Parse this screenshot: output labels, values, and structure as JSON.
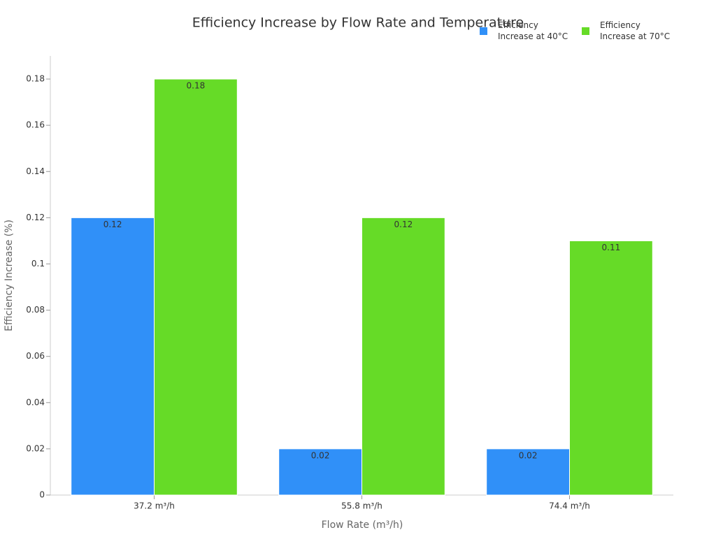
{
  "chart_data": {
    "type": "bar",
    "title": "Efficiency Increase by Flow Rate and Temperature",
    "x_label": "Flow Rate (m³/h)",
    "y_label": "Efficiency Increase (%)",
    "categories": [
      "37.2 m³/h",
      "55.8 m³/h",
      "74.4 m³/h"
    ],
    "series": [
      {
        "name": "Efficiency Increase at 40°C",
        "color": "#3090f8",
        "values": [
          0.12,
          0.02,
          0.02
        ]
      },
      {
        "name": "Efficiency Increase at 70°C",
        "color": "#66db27",
        "values": [
          0.18,
          0.12,
          0.11
        ]
      }
    ],
    "ylim": [
      0,
      0.19
    ],
    "yticks": [
      0,
      0.02,
      0.04,
      0.06,
      0.08,
      0.1,
      0.12,
      0.14,
      0.16,
      0.18
    ],
    "grid": false,
    "legend": "top-right"
  }
}
